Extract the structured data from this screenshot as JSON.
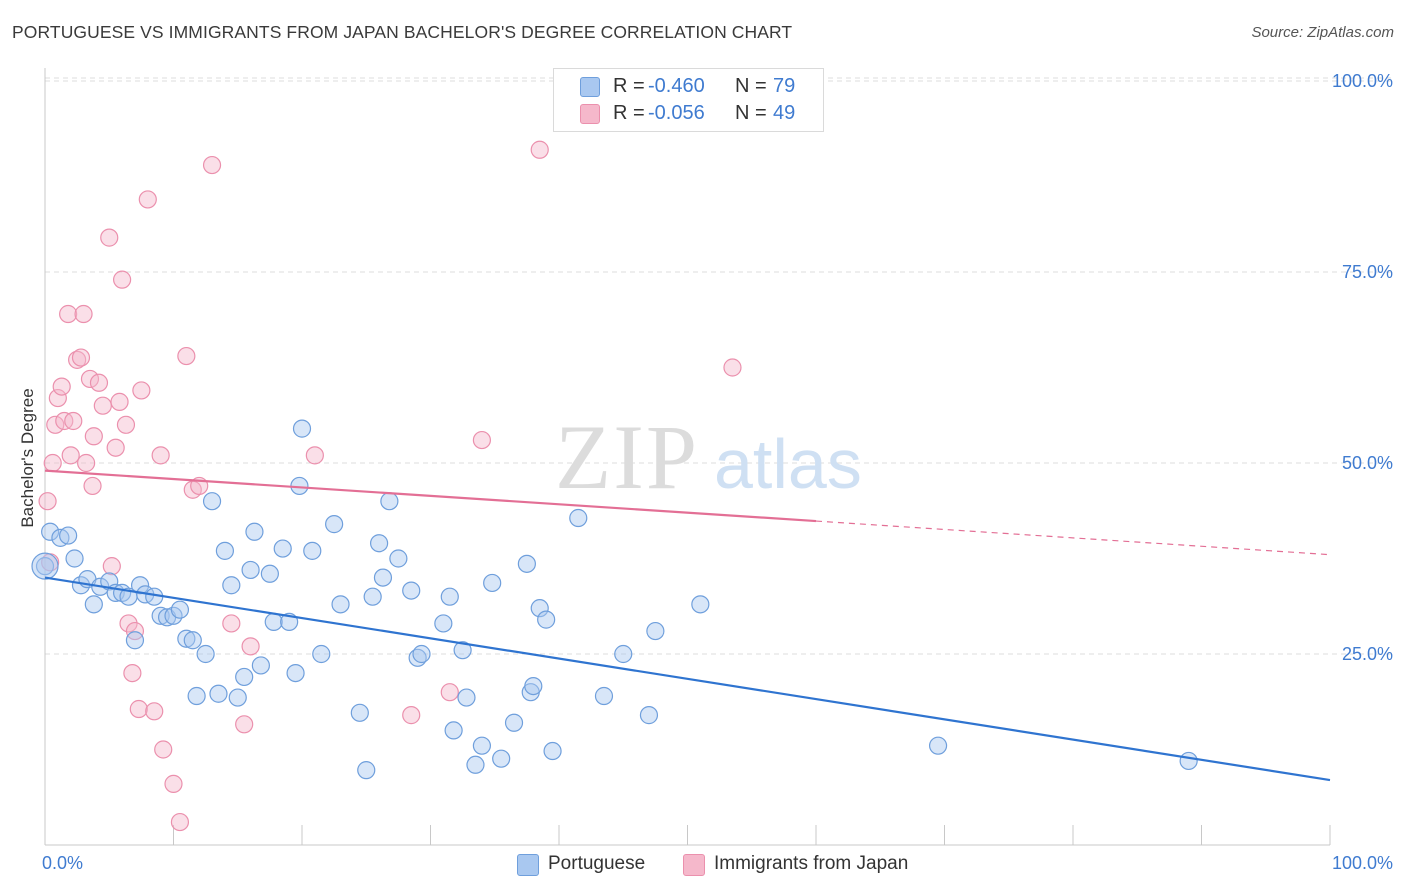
{
  "title": "PORTUGUESE VS IMMIGRANTS FROM JAPAN BACHELOR'S DEGREE CORRELATION CHART",
  "source": "Source: ZipAtlas.com",
  "watermark": {
    "zip": "ZIP",
    "atlas": "atlas"
  },
  "colors": {
    "blue_fill": "#a9c8f0",
    "blue_stroke": "#6f9fdc",
    "blue_line": "#2f74d0",
    "pink_fill": "#f5b8cb",
    "pink_stroke": "#eb90ad",
    "pink_line": "#e36f95",
    "tick_text": "#3f7bd0",
    "grid": "#dcdcdc"
  },
  "legend": {
    "rows": [
      {
        "r_label": "R =",
        "r_value": "-0.460",
        "n_label": "N =",
        "n_value": "79"
      },
      {
        "r_label": "R =",
        "r_value": "-0.056",
        "n_label": "N =",
        "n_value": "49"
      }
    ]
  },
  "bottom_legend": [
    "Portuguese",
    "Immigrants from Japan"
  ],
  "chart_data": {
    "type": "scatter",
    "title": "PORTUGUESE VS IMMIGRANTS FROM JAPAN BACHELOR'S DEGREE CORRELATION CHART",
    "xlabel": "",
    "ylabel": "Bachelor's Degree",
    "xlim": [
      0,
      100
    ],
    "ylim": [
      0,
      100
    ],
    "x_tick_labels": [
      "0.0%",
      "100.0%"
    ],
    "y_ticks": [
      25,
      50,
      75,
      100
    ],
    "y_tick_labels": [
      "25.0%",
      "50.0%",
      "75.0%",
      "100.0%"
    ],
    "grid": true,
    "legend_position": "top-center",
    "series": [
      {
        "name": "Portuguese",
        "color": "blue",
        "trend": {
          "x": [
            0,
            100
          ],
          "y": [
            35.0,
            8.5
          ],
          "dashed_from": null
        },
        "points": [
          [
            0.0,
            36.5
          ],
          [
            0.4,
            41.0
          ],
          [
            1.2,
            40.2
          ],
          [
            1.8,
            40.5
          ],
          [
            2.3,
            37.5
          ],
          [
            2.8,
            34.0
          ],
          [
            3.3,
            34.8
          ],
          [
            3.8,
            31.5
          ],
          [
            4.3,
            33.8
          ],
          [
            5.0,
            34.5
          ],
          [
            5.5,
            33.0
          ],
          [
            6.0,
            33.0
          ],
          [
            6.5,
            32.5
          ],
          [
            7.0,
            26.8
          ],
          [
            7.4,
            34.0
          ],
          [
            7.8,
            32.8
          ],
          [
            8.5,
            32.5
          ],
          [
            9.0,
            30.0
          ],
          [
            9.5,
            29.8
          ],
          [
            10.0,
            30.0
          ],
          [
            10.5,
            30.8
          ],
          [
            11.0,
            27.0
          ],
          [
            11.5,
            26.8
          ],
          [
            11.8,
            19.5
          ],
          [
            12.5,
            25.0
          ],
          [
            13.0,
            45.0
          ],
          [
            13.5,
            19.8
          ],
          [
            14.0,
            38.5
          ],
          [
            14.5,
            34.0
          ],
          [
            15.0,
            19.3
          ],
          [
            15.5,
            22.0
          ],
          [
            16.0,
            36.0
          ],
          [
            16.3,
            41.0
          ],
          [
            16.8,
            23.5
          ],
          [
            17.5,
            35.5
          ],
          [
            17.8,
            29.2
          ],
          [
            18.5,
            38.8
          ],
          [
            19.0,
            29.2
          ],
          [
            19.5,
            22.5
          ],
          [
            19.8,
            47.0
          ],
          [
            20.0,
            54.5
          ],
          [
            20.8,
            38.5
          ],
          [
            21.5,
            25.0
          ],
          [
            22.5,
            42.0
          ],
          [
            23.0,
            31.5
          ],
          [
            24.5,
            17.3
          ],
          [
            25.0,
            9.8
          ],
          [
            25.5,
            32.5
          ],
          [
            26.0,
            39.5
          ],
          [
            26.3,
            35.0
          ],
          [
            26.8,
            45.0
          ],
          [
            27.5,
            37.5
          ],
          [
            28.5,
            33.3
          ],
          [
            29.0,
            24.5
          ],
          [
            29.3,
            25.0
          ],
          [
            31.0,
            29.0
          ],
          [
            31.5,
            32.5
          ],
          [
            31.8,
            15.0
          ],
          [
            32.5,
            25.5
          ],
          [
            32.8,
            19.3
          ],
          [
            33.5,
            10.5
          ],
          [
            34.0,
            13.0
          ],
          [
            34.8,
            34.3
          ],
          [
            35.5,
            11.3
          ],
          [
            36.5,
            16.0
          ],
          [
            37.5,
            36.8
          ],
          [
            37.8,
            20.0
          ],
          [
            38.0,
            20.8
          ],
          [
            38.5,
            31.0
          ],
          [
            39.0,
            29.5
          ],
          [
            39.5,
            12.3
          ],
          [
            41.5,
            42.8
          ],
          [
            43.5,
            19.5
          ],
          [
            45.0,
            25.0
          ],
          [
            47.0,
            17.0
          ],
          [
            47.5,
            28.0
          ],
          [
            51.0,
            31.5
          ],
          [
            69.5,
            13.0
          ],
          [
            89.0,
            11.0
          ]
        ]
      },
      {
        "name": "Immigrants from Japan",
        "color": "pink",
        "trend": {
          "x": [
            0,
            100
          ],
          "y": [
            49.0,
            38.0
          ],
          "dashed_from": 60
        },
        "points": [
          [
            0.2,
            45.0
          ],
          [
            0.4,
            37.0
          ],
          [
            0.6,
            50.0
          ],
          [
            0.8,
            55.0
          ],
          [
            1.0,
            58.5
          ],
          [
            1.3,
            60.0
          ],
          [
            1.5,
            55.5
          ],
          [
            1.8,
            69.5
          ],
          [
            2.0,
            51.0
          ],
          [
            2.2,
            55.5
          ],
          [
            2.5,
            63.5
          ],
          [
            2.8,
            63.8
          ],
          [
            3.0,
            69.5
          ],
          [
            3.2,
            50.0
          ],
          [
            3.5,
            61.0
          ],
          [
            3.7,
            47.0
          ],
          [
            3.8,
            53.5
          ],
          [
            4.2,
            60.5
          ],
          [
            4.5,
            57.5
          ],
          [
            5.0,
            79.5
          ],
          [
            5.2,
            36.5
          ],
          [
            5.5,
            52.0
          ],
          [
            5.8,
            58.0
          ],
          [
            6.0,
            74.0
          ],
          [
            6.3,
            55.0
          ],
          [
            6.5,
            29.0
          ],
          [
            6.8,
            22.5
          ],
          [
            7.0,
            28.0
          ],
          [
            7.3,
            17.8
          ],
          [
            7.5,
            59.5
          ],
          [
            8.0,
            84.5
          ],
          [
            8.5,
            17.5
          ],
          [
            9.0,
            51.0
          ],
          [
            9.2,
            12.5
          ],
          [
            10.0,
            8.0
          ],
          [
            10.5,
            3.0
          ],
          [
            11.0,
            64.0
          ],
          [
            11.5,
            46.5
          ],
          [
            12.0,
            47.0
          ],
          [
            13.0,
            89.0
          ],
          [
            14.5,
            29.0
          ],
          [
            15.5,
            15.8
          ],
          [
            16.0,
            26.0
          ],
          [
            21.0,
            51.0
          ],
          [
            28.5,
            17.0
          ],
          [
            31.5,
            20.0
          ],
          [
            34.0,
            53.0
          ],
          [
            38.5,
            91.0
          ],
          [
            53.5,
            62.5
          ]
        ]
      }
    ]
  }
}
